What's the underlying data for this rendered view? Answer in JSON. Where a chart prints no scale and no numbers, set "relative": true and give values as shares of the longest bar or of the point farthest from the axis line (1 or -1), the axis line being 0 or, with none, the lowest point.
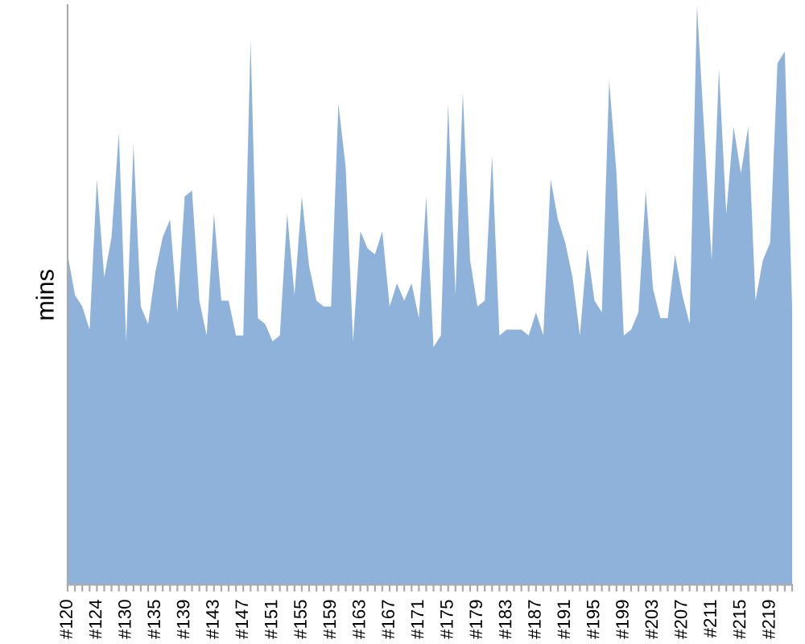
{
  "chart_data": {
    "type": "area",
    "ylabel": "mins",
    "relative": true,
    "color": "#8fb2da",
    "grid": false,
    "legend": false,
    "categories": [
      "#120",
      null,
      null,
      null,
      "#124",
      null,
      null,
      null,
      "#130",
      null,
      null,
      null,
      "#135",
      null,
      null,
      null,
      "#139",
      null,
      null,
      null,
      "#143",
      null,
      null,
      null,
      "#147",
      null,
      null,
      null,
      "#151",
      null,
      null,
      null,
      "#155",
      null,
      null,
      null,
      "#159",
      null,
      null,
      null,
      "#163",
      null,
      null,
      null,
      "#167",
      null,
      null,
      null,
      "#171",
      null,
      null,
      null,
      "#175",
      null,
      null,
      null,
      "#179",
      null,
      null,
      null,
      "#183",
      null,
      null,
      null,
      "#187",
      null,
      null,
      null,
      "#191",
      null,
      null,
      null,
      "#195",
      null,
      null,
      null,
      "#199",
      null,
      null,
      null,
      "#203",
      null,
      null,
      null,
      "#207",
      null,
      null,
      null,
      "#211",
      null,
      null,
      null,
      "#215",
      null,
      null,
      null,
      "#219",
      null,
      null,
      null
    ],
    "values": [
      0.57,
      0.5,
      0.48,
      0.44,
      0.7,
      0.53,
      0.6,
      0.78,
      0.42,
      0.76,
      0.48,
      0.45,
      0.54,
      0.6,
      0.63,
      0.47,
      0.67,
      0.68,
      0.49,
      0.43,
      0.64,
      0.49,
      0.49,
      0.43,
      0.43,
      0.94,
      0.46,
      0.45,
      0.42,
      0.43,
      0.64,
      0.5,
      0.67,
      0.55,
      0.49,
      0.48,
      0.48,
      0.83,
      0.72,
      0.42,
      0.61,
      0.58,
      0.57,
      0.61,
      0.48,
      0.52,
      0.49,
      0.52,
      0.46,
      0.67,
      0.41,
      0.43,
      0.83,
      0.5,
      0.85,
      0.56,
      0.48,
      0.49,
      0.74,
      0.43,
      0.44,
      0.44,
      0.44,
      0.43,
      0.47,
      0.43,
      0.7,
      0.63,
      0.59,
      0.53,
      0.43,
      0.58,
      0.49,
      0.47,
      0.87,
      0.71,
      0.43,
      0.44,
      0.47,
      0.68,
      0.51,
      0.46,
      0.46,
      0.57,
      0.5,
      0.45,
      1,
      0.78,
      0.56,
      0.89,
      0.64,
      0.79,
      0.71,
      0.79,
      0.49,
      0.56,
      0.59,
      0.9,
      0.92,
      0.48
    ]
  }
}
